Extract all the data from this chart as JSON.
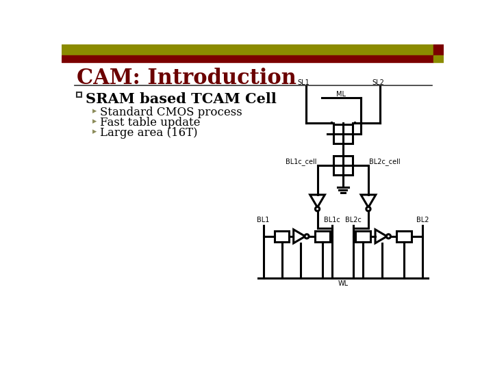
{
  "title": "CAM: Introduction",
  "header_bar_color": "#8B8B00",
  "header_accent_color": "#7B0000",
  "bg_color": "#FFFFFF",
  "bullet_main": "SRAM based TCAM Cell",
  "bullets_sub": [
    "Standard CMOS process",
    "Fast table update",
    "Large area (16T)"
  ],
  "text_color": "#000000",
  "title_color": "#6B0000",
  "circuit_color": "#000000",
  "lw": 2.2
}
